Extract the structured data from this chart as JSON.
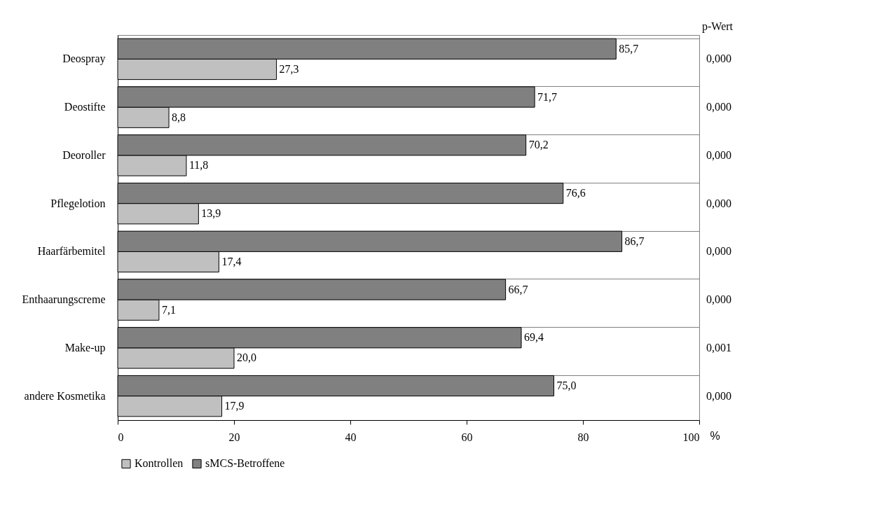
{
  "chart_data": {
    "type": "bar",
    "orientation": "horizontal",
    "xlabel": "%",
    "categories": [
      "Deospray",
      "Deostifte",
      "Deoroller",
      "Pflegelotion",
      "Haarfärbemitel",
      "Enthaarungscreme",
      "Make-up",
      "andere Kosmetika"
    ],
    "series": [
      {
        "name": "Kontrollen",
        "color": "#c0c0c0",
        "values": [
          27.3,
          8.8,
          11.8,
          13.9,
          17.4,
          7.1,
          20.0,
          17.9
        ],
        "value_labels": [
          "27,3",
          "8,8",
          "11,8",
          "13,9",
          "17,4",
          "7,1",
          "20,0",
          "17,9"
        ]
      },
      {
        "name": "sMCS-Betroffene",
        "color": "#808080",
        "values": [
          85.7,
          71.7,
          70.2,
          76.6,
          86.7,
          66.7,
          69.4,
          75.0
        ],
        "value_labels": [
          "85,7",
          "71,7",
          "70,2",
          "76,6",
          "86,7",
          "66,7",
          "69,4",
          "75,0"
        ]
      }
    ],
    "xlim": [
      0,
      100
    ],
    "xticks": [
      0,
      20,
      40,
      60,
      80,
      100
    ],
    "grid": "y",
    "legend": "bottom",
    "annotations": [
      "p-Wert",
      "0,000",
      "0,000",
      "0,000",
      "0,000",
      "0,000",
      "0,000",
      "0,001",
      "0,000"
    ]
  }
}
